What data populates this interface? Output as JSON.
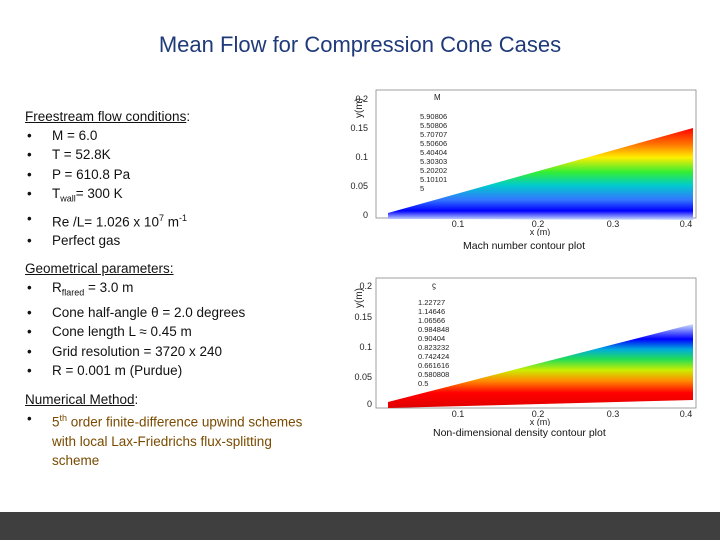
{
  "slide": {
    "title": "Mean Flow for Compression Cone Cases",
    "freestream": {
      "heading": "Freestream flow conditions",
      "colon": ":",
      "items": [
        "M  =  6.0",
        "T  =  52.8K",
        "P  =   610.8 Pa",
        "= 300 K",
        "Re /L=  1.026 x 10",
        "Perfect gas"
      ],
      "twall_prefix": "T",
      "twall_sub": "wall",
      "re_sup1": "7",
      "re_unit": " m",
      "re_sup2": "-1"
    },
    "geometry": {
      "heading": "Geometrical parameters:",
      "r_prefix": "R",
      "r_sub": "flared",
      "r_value": " = 3.0 m",
      "items": [
        "Cone half-angle θ = 2.0 degrees",
        "Cone length L ≈ 0.45 m",
        "Grid resolution  =  3720 x 240",
        " R = 0.001 m (Purdue)"
      ]
    },
    "numerical": {
      "heading": "Numerical Method",
      "colon": ":",
      "item_sup": "5",
      "item_sup_after": "th",
      "item_text": " order finite-difference upwind schemes with local Lax-Friedrichs flux-splitting scheme"
    },
    "plot1": {
      "caption": "Mach number contour plot",
      "ylabel": "y(m)",
      "xlabel": "x (m)",
      "legend_title": "M",
      "legend": [
        "5.90806",
        "5.50806",
        "5.70707",
        "5.50606",
        "5.40404",
        "5.30303",
        "5.20202",
        "5.10101",
        "5"
      ],
      "yticks": [
        "0.2",
        "0.15",
        "0.1",
        "0.05",
        "0"
      ],
      "xticks": [
        "0.1",
        "0.2",
        "0.3",
        "0.4"
      ]
    },
    "plot2": {
      "caption": "Non-dimensional density contour plot",
      "ylabel": "y(m)",
      "xlabel": "x (m)",
      "legend_title": "ϛ",
      "legend": [
        "1.22727",
        "1.14646",
        "1.06566",
        "0.984848",
        "0.90404",
        "0.823232",
        "0.742424",
        "0.661616",
        "0.580808",
        "0.5"
      ],
      "yticks": [
        "0.2",
        "0.15",
        "0.1",
        "0.05",
        "0"
      ],
      "xticks": [
        "0.1",
        "0.2",
        "0.3",
        "0.4"
      ]
    }
  }
}
